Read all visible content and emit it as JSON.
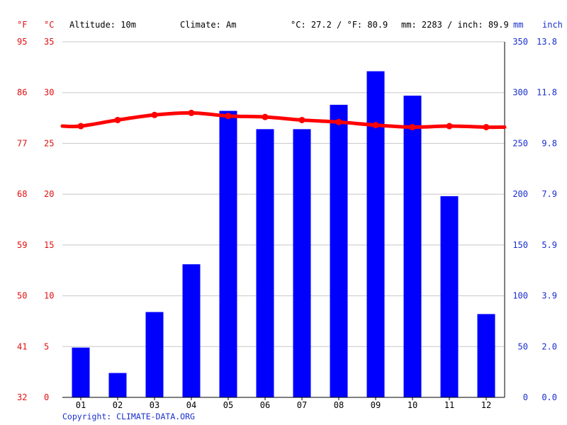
{
  "header": {
    "unit_f": "°F",
    "unit_c": "°C",
    "altitude": "Altitude: 10m",
    "climate": "Climate: Am",
    "temp_avg": "°C: 27.2 / °F: 80.9",
    "precip_total": "mm: 2283 / inch: 89.9",
    "unit_mm": "mm",
    "unit_inch": "inch"
  },
  "footer": {
    "copyright": "Copyright: CLIMATE-DATA.ORG"
  },
  "colors": {
    "temperature": "#ff0000",
    "precipitation": "#0000ff",
    "left_axis_text": "#e01010",
    "right_axis_text": "#1a2fcc",
    "grid": "#c8c8c8",
    "copyright": "#1a2fcc"
  },
  "chart_data": {
    "type": "bar",
    "categories": [
      "01",
      "02",
      "03",
      "04",
      "05",
      "06",
      "07",
      "08",
      "09",
      "10",
      "11",
      "12"
    ],
    "series": [
      {
        "type": "bar",
        "axis": "right",
        "unit": "mm",
        "values": [
          49,
          24,
          84,
          131,
          282,
          264,
          264,
          288,
          321,
          297,
          198,
          82
        ]
      },
      {
        "type": "line",
        "axis": "left",
        "unit": "°C",
        "values": [
          26.7,
          27.3,
          27.8,
          28.0,
          27.7,
          27.6,
          27.3,
          27.1,
          26.8,
          26.6,
          26.7,
          26.6
        ]
      }
    ],
    "left_axis_celsius": {
      "ylim": [
        0,
        35
      ],
      "ticks": [
        "35",
        "30",
        "25",
        "20",
        "15",
        "10",
        "5",
        "0"
      ]
    },
    "left_axis_fahrenheit": {
      "ticks": [
        "95",
        "86",
        "77",
        "68",
        "59",
        "50",
        "41",
        "32"
      ]
    },
    "right_axis_mm": {
      "ylim": [
        0,
        350
      ],
      "ticks": [
        "350",
        "300",
        "250",
        "200",
        "150",
        "100",
        "50",
        "0"
      ]
    },
    "right_axis_inch": {
      "ticks": [
        "13.8",
        "11.8",
        "9.8",
        "7.9",
        "5.9",
        "3.9",
        "2.0",
        "0.0"
      ]
    },
    "grid": true,
    "legend": "none"
  }
}
